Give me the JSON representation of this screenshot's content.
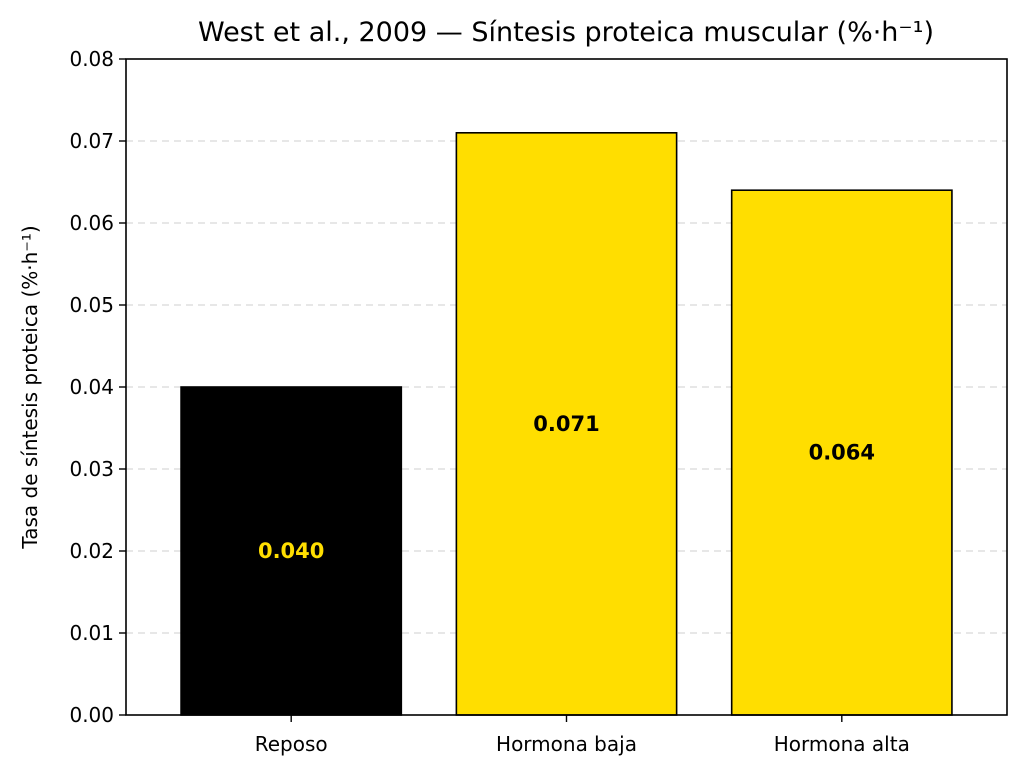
{
  "chart_data": {
    "type": "bar",
    "title": "West et al., 2009 — Síntesis proteica muscular (%·h⁻¹)",
    "xlabel": "",
    "ylabel": "Tasa de síntesis proteica (%·h⁻¹)",
    "ylim": [
      0,
      0.08
    ],
    "yticks": [
      "0.00",
      "0.01",
      "0.02",
      "0.03",
      "0.04",
      "0.05",
      "0.06",
      "0.07",
      "0.08"
    ],
    "grid": "horizontal-dashed",
    "categories": [
      "Reposo",
      "Hormona baja",
      "Hormona alta"
    ],
    "values": [
      0.04,
      0.071,
      0.064
    ],
    "value_labels": [
      "0.040",
      "0.071",
      "0.064"
    ],
    "bar_colors": [
      "#000000",
      "#ffde00",
      "#ffde00"
    ],
    "label_colors": [
      "#ffde00",
      "#000000",
      "#000000"
    ]
  }
}
